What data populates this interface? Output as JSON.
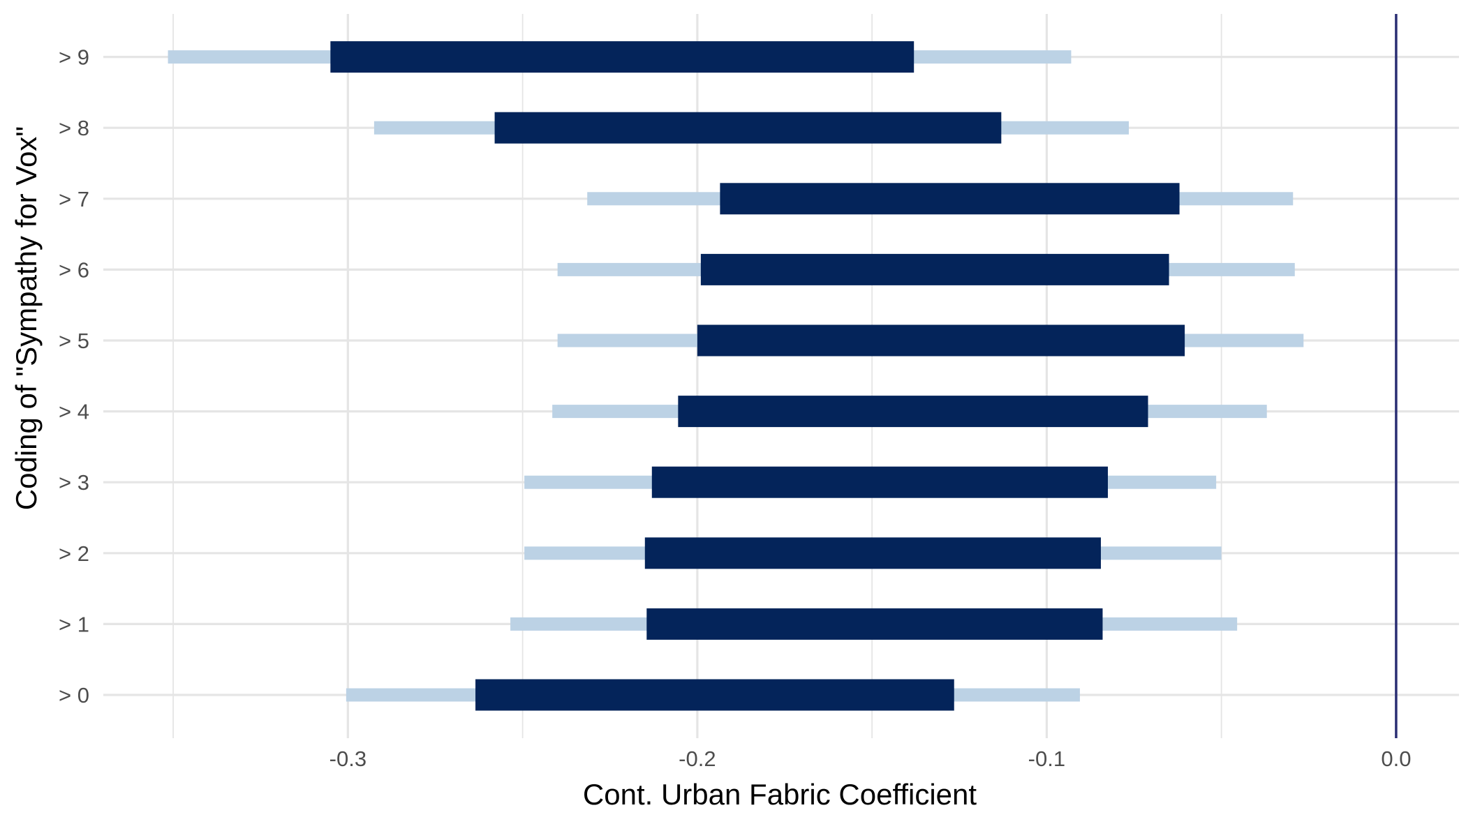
{
  "chart_data": {
    "type": "interval",
    "title": "",
    "xlabel": "Cont. Urban Fabric Coefficient",
    "ylabel": "Coding of \"Sympathy for Vox\"",
    "xlim": [
      -0.37,
      0.018
    ],
    "xticks": [
      {
        "value": -0.3,
        "label": "-0.3"
      },
      {
        "value": -0.2,
        "label": "-0.2"
      },
      {
        "value": -0.1,
        "label": "-0.1"
      },
      {
        "value": 0.0,
        "label": "0.0"
      }
    ],
    "grid": true,
    "reference_line": 0.0,
    "categories": [
      "> 0",
      "> 1",
      "> 2",
      "> 3",
      "> 4",
      "> 5",
      "> 6",
      "> 7",
      "> 8",
      "> 9"
    ],
    "intervals": [
      {
        "label": "> 0",
        "outer": [
          -0.3005,
          -0.0905
        ],
        "inner": [
          -0.2635,
          -0.1265
        ]
      },
      {
        "label": "> 1",
        "outer": [
          -0.2535,
          -0.0455
        ],
        "inner": [
          -0.2145,
          -0.084
        ]
      },
      {
        "label": "> 2",
        "outer": [
          -0.2495,
          -0.05
        ],
        "inner": [
          -0.215,
          -0.0845
        ]
      },
      {
        "label": "> 3",
        "outer": [
          -0.2495,
          -0.0515
        ],
        "inner": [
          -0.213,
          -0.0825
        ]
      },
      {
        "label": "> 4",
        "outer": [
          -0.2415,
          -0.037
        ],
        "inner": [
          -0.2055,
          -0.071
        ]
      },
      {
        "label": "> 5",
        "outer": [
          -0.24,
          -0.0265
        ],
        "inner": [
          -0.2,
          -0.0605
        ]
      },
      {
        "label": "> 6",
        "outer": [
          -0.24,
          -0.029
        ],
        "inner": [
          -0.199,
          -0.065
        ]
      },
      {
        "label": "> 7",
        "outer": [
          -0.2315,
          -0.0295
        ],
        "inner": [
          -0.1935,
          -0.062
        ]
      },
      {
        "label": "> 8",
        "outer": [
          -0.2925,
          -0.0765
        ],
        "inner": [
          -0.258,
          -0.113
        ]
      },
      {
        "label": "> 9",
        "outer": [
          -0.3515,
          -0.093
        ],
        "inner": [
          -0.305,
          -0.138
        ]
      }
    ],
    "colors": {
      "outer": "#bcd2e5",
      "inner": "#04245a",
      "reference_line": "#2b2f74",
      "grid": "#e5e5e5"
    }
  }
}
